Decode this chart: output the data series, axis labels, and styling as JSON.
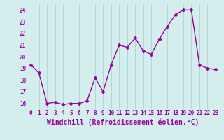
{
  "x": [
    0,
    1,
    2,
    3,
    4,
    5,
    6,
    7,
    8,
    9,
    10,
    11,
    12,
    13,
    14,
    15,
    16,
    17,
    18,
    19,
    20,
    21,
    22,
    23
  ],
  "y": [
    19.3,
    18.6,
    16.0,
    16.1,
    15.9,
    16.0,
    16.0,
    16.2,
    18.2,
    17.0,
    19.3,
    21.0,
    20.8,
    21.6,
    20.5,
    20.2,
    21.5,
    22.6,
    23.6,
    24.0,
    24.0,
    19.3,
    19.0,
    18.9
  ],
  "line_color": "#990099",
  "marker": "D",
  "markersize": 2.5,
  "linewidth": 1.0,
  "bg_color": "#d4eeee",
  "grid_color": "#aacccc",
  "xlabel": "Windchill (Refroidissement éolien,°C)",
  "xlabel_color": "#990099",
  "xlabel_fontsize": 7,
  "ylabel_ticks": [
    16,
    17,
    18,
    19,
    20,
    21,
    22,
    23,
    24
  ],
  "xtick_labels": [
    "0",
    "1",
    "2",
    "3",
    "4",
    "5",
    "6",
    "7",
    "8",
    "9",
    "10",
    "11",
    "12",
    "13",
    "14",
    "15",
    "16",
    "17",
    "18",
    "19",
    "20",
    "21",
    "22",
    "23"
  ],
  "ylim": [
    15.5,
    24.5
  ],
  "xlim": [
    -0.5,
    23.5
  ],
  "tick_fontsize": 5.5,
  "tick_color": "#990099"
}
